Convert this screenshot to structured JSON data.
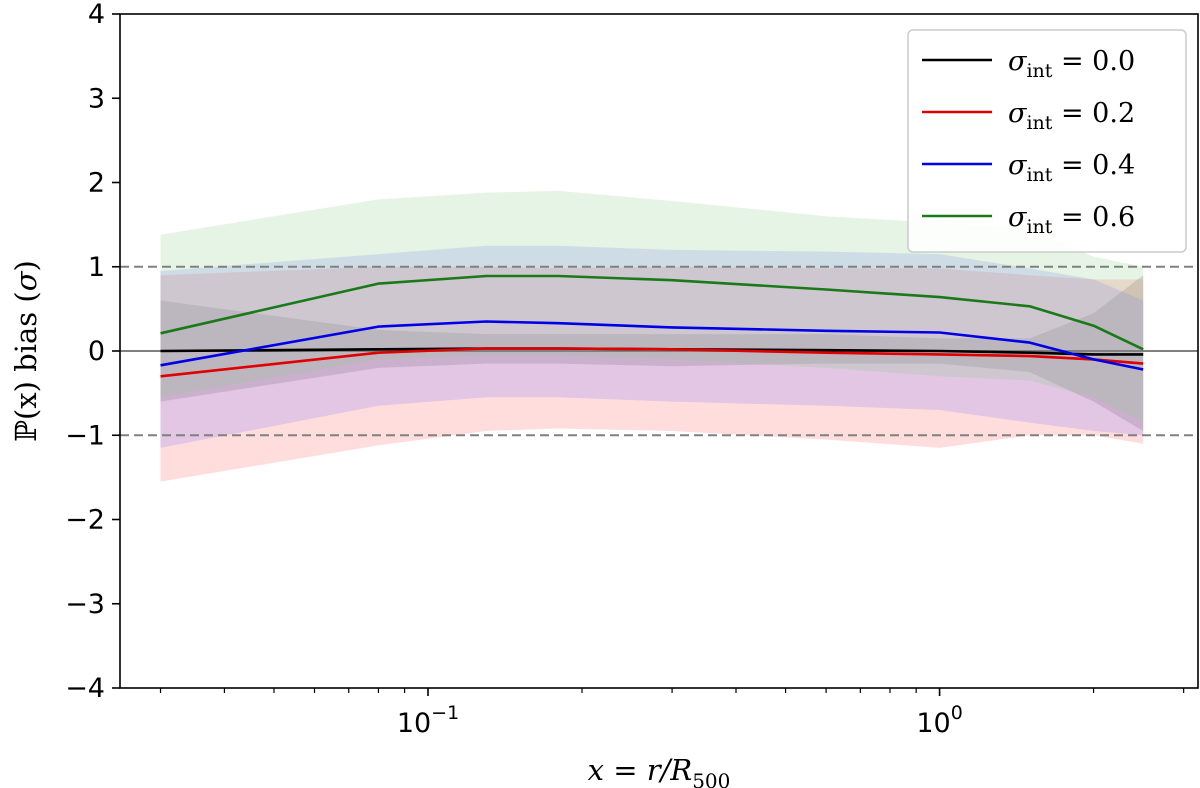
{
  "chart_data": {
    "type": "line",
    "xscale": "log",
    "xlabel": {
      "main": "x = r/R",
      "sub": "500"
    },
    "ylabel": {
      "pre": "ℙ(x) bias (",
      "sym": "σ",
      "post": ")"
    },
    "xlim": [
      0.025,
      3.2
    ],
    "ylim": [
      -4,
      4
    ],
    "yticks": [
      {
        "value": 4,
        "label": "4"
      },
      {
        "value": 3,
        "label": "3"
      },
      {
        "value": 2,
        "label": "2"
      },
      {
        "value": 1,
        "label": "1"
      },
      {
        "value": 0,
        "label": "0"
      },
      {
        "value": -1,
        "label": "−1"
      },
      {
        "value": -2,
        "label": "−2"
      },
      {
        "value": -3,
        "label": "−3"
      },
      {
        "value": -4,
        "label": "−4"
      }
    ],
    "xticks": [
      {
        "value": 0.1,
        "base": "10",
        "exp": "−1"
      },
      {
        "value": 1,
        "base": "10",
        "exp": "0"
      }
    ],
    "reference_lines": [
      {
        "y": 1,
        "style": "dashed",
        "color": "#808080"
      },
      {
        "y": -1,
        "style": "dashed",
        "color": "#808080"
      },
      {
        "y": 0,
        "style": "solid",
        "color": "#808080"
      }
    ],
    "legend": {
      "position": "top-right"
    },
    "x": [
      0.03,
      0.08,
      0.13,
      0.18,
      0.3,
      0.6,
      1.0,
      1.5,
      2.0,
      2.5
    ],
    "series": [
      {
        "name": "σ_int = 0.0",
        "label_sym": "σ",
        "label_sub": "int",
        "label_val": " = 0.0",
        "color": "#000000",
        "band_color": "#808080",
        "band_opacity": 0.28,
        "values": [
          0.0,
          0.02,
          0.03,
          0.03,
          0.02,
          0.01,
          0.0,
          -0.02,
          -0.04,
          -0.04
        ],
        "lower": [
          -0.6,
          -0.2,
          -0.15,
          -0.15,
          -0.18,
          -0.15,
          -0.15,
          -0.25,
          -0.6,
          -0.95
        ],
        "upper": [
          0.6,
          0.25,
          0.2,
          0.2,
          0.2,
          0.2,
          0.15,
          0.15,
          0.45,
          0.9
        ]
      },
      {
        "name": "σ_int = 0.2",
        "label_sym": "σ",
        "label_sub": "int",
        "label_val": " = 0.2",
        "color": "#e00000",
        "band_color": "#ff6666",
        "band_opacity": 0.22,
        "values": [
          -0.3,
          -0.02,
          0.03,
          0.03,
          0.02,
          -0.02,
          -0.04,
          -0.06,
          -0.1,
          -0.15
        ],
        "lower": [
          -1.55,
          -1.12,
          -0.95,
          -0.92,
          -0.95,
          -1.05,
          -1.15,
          -1.0,
          -1.0,
          -1.1
        ],
        "upper": [
          0.9,
          1.0,
          1.0,
          0.98,
          1.0,
          0.98,
          0.98,
          0.9,
          0.85,
          0.85
        ]
      },
      {
        "name": "σ_int = 0.4",
        "label_sym": "σ",
        "label_sub": "int",
        "label_val": " = 0.4",
        "color": "#0000e6",
        "band_color": "#7070ff",
        "band_opacity": 0.2,
        "values": [
          -0.17,
          0.29,
          0.35,
          0.33,
          0.28,
          0.24,
          0.22,
          0.1,
          -0.1,
          -0.22
        ],
        "lower": [
          -1.15,
          -0.65,
          -0.55,
          -0.55,
          -0.6,
          -0.65,
          -0.7,
          -0.85,
          -0.95,
          -1.0
        ],
        "upper": [
          0.95,
          1.15,
          1.25,
          1.25,
          1.2,
          1.18,
          1.15,
          0.98,
          0.85,
          0.6
        ]
      },
      {
        "name": "σ_int = 0.6",
        "label_sym": "σ",
        "label_sub": "int",
        "label_val": " = 0.6",
        "color": "#1a7a1a",
        "band_color": "#88cc88",
        "band_opacity": 0.22,
        "values": [
          0.21,
          0.8,
          0.89,
          0.89,
          0.84,
          0.73,
          0.64,
          0.53,
          0.3,
          0.02
        ],
        "lower": [
          -0.55,
          -0.1,
          -0.05,
          -0.05,
          -0.1,
          -0.2,
          -0.3,
          -0.35,
          -0.55,
          -0.85
        ],
        "upper": [
          1.38,
          1.8,
          1.88,
          1.9,
          1.78,
          1.6,
          1.52,
          1.45,
          1.12,
          1.0
        ]
      }
    ]
  }
}
